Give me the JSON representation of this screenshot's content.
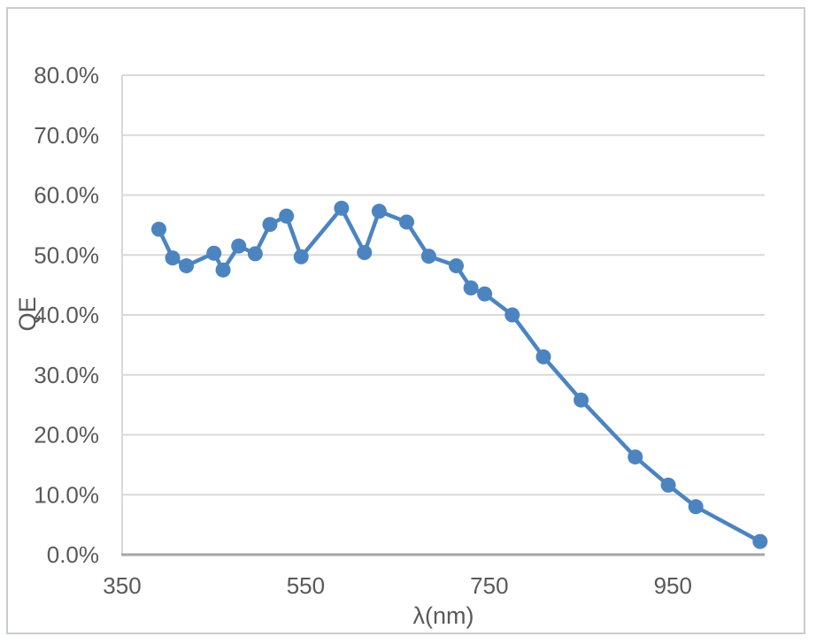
{
  "chart_data": {
    "type": "line",
    "title": "",
    "xlabel": "λ(nm)",
    "ylabel": "QE",
    "series": [
      {
        "name": "QE",
        "x_nm": [
          390,
          405,
          420,
          450,
          460,
          477,
          495,
          511,
          529,
          545,
          589,
          614,
          630,
          660,
          684,
          714,
          730,
          745,
          775,
          809,
          850,
          909,
          945,
          975,
          1045
        ],
        "qe_percent": [
          54.3,
          49.5,
          48.2,
          50.3,
          47.5,
          51.5,
          50.2,
          55.1,
          56.5,
          49.7,
          57.8,
          50.4,
          57.3,
          55.5,
          49.8,
          48.2,
          44.5,
          43.5,
          40.0,
          33.0,
          25.8,
          16.3,
          11.6,
          8.0,
          2.2
        ]
      }
    ],
    "xlim": [
      350,
      1050
    ],
    "ylim_percent": [
      0,
      80
    ],
    "x_ticks": [
      350,
      550,
      750,
      950
    ],
    "x_tick_labels": [
      "350",
      "550",
      "750",
      "950"
    ],
    "y_ticks_percent": [
      0,
      10,
      20,
      30,
      40,
      50,
      60,
      70,
      80
    ],
    "y_tick_labels": [
      "0.0%",
      "10.0%",
      "20.0%",
      "30.0%",
      "40.0%",
      "50.0%",
      "60.0%",
      "70.0%",
      "80.0%"
    ],
    "grid": true,
    "legend": false,
    "marker": "circle",
    "colors": {
      "series": "#4c84c0",
      "gridline": "#d9d9d9",
      "axis_line": "#a6a6a6",
      "plot_border": "#d9d9d9",
      "tick_text": "#595959",
      "chart_border": "#c9cccf",
      "background": "#ffffff"
    }
  }
}
